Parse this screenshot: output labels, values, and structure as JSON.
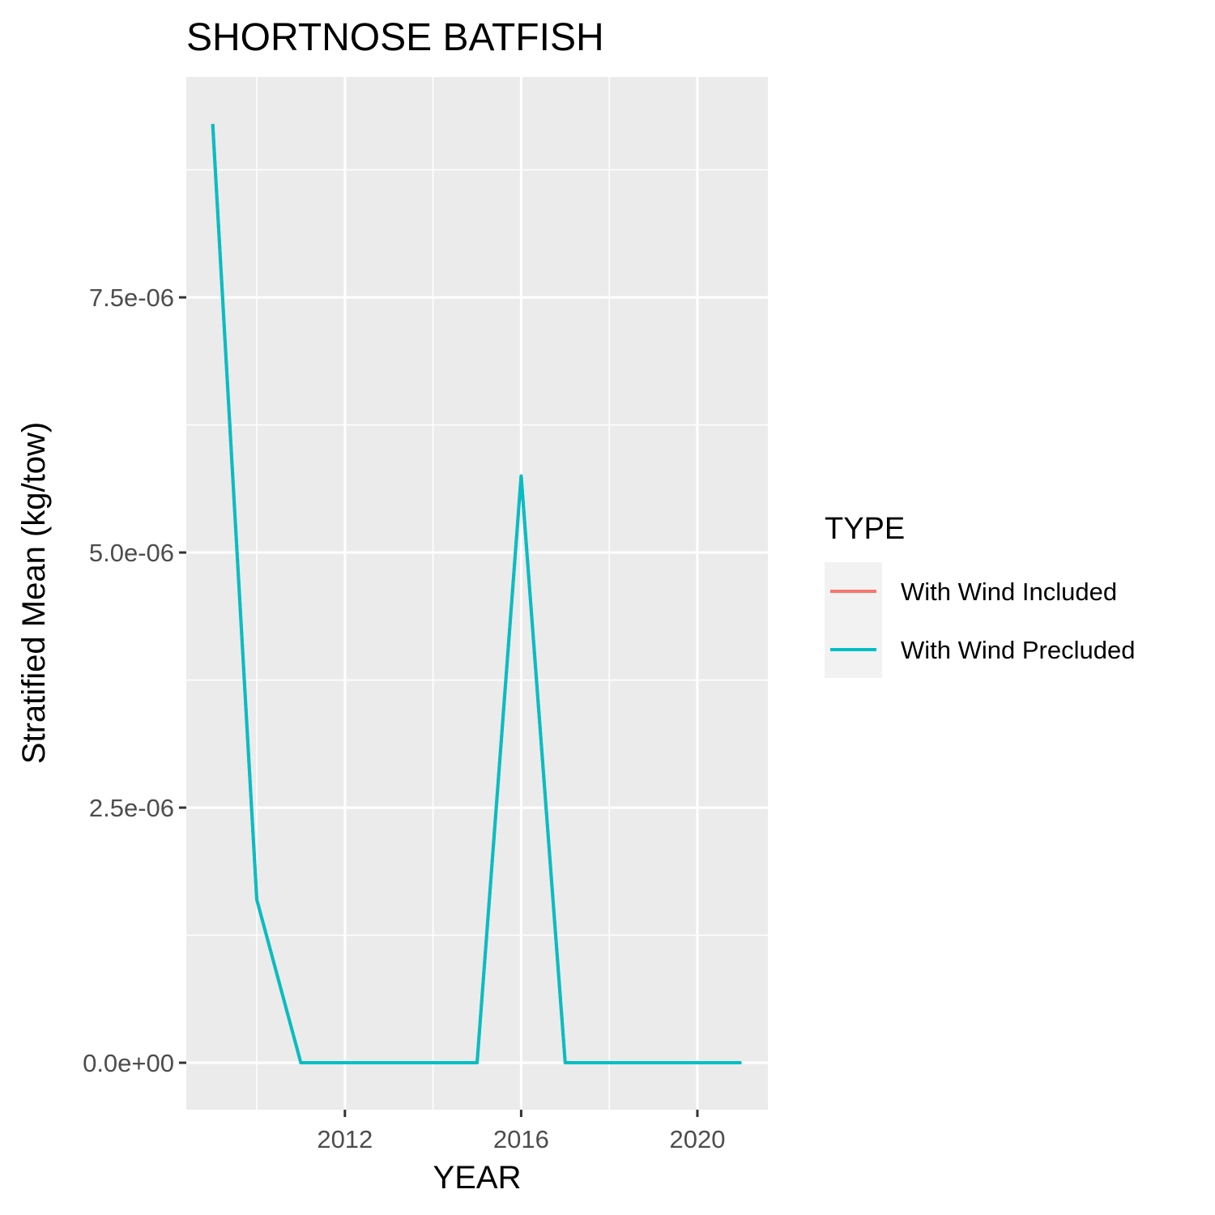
{
  "chart_data": {
    "type": "line",
    "title": "SHORTNOSE BATFISH",
    "xlabel": "YEAR",
    "ylabel": "Stratified Mean (kg/tow)",
    "x": [
      2009,
      2010,
      2011,
      2012,
      2013,
      2014,
      2015,
      2016,
      2017,
      2018,
      2019,
      2020,
      2021
    ],
    "series": [
      {
        "name": "With Wind Included",
        "color": "#F8766D",
        "values": [
          9.2e-06,
          1.6e-06,
          0,
          0,
          0,
          0,
          0,
          5.75e-06,
          0,
          0,
          0,
          0,
          0
        ]
      },
      {
        "name": "With Wind Precluded",
        "color": "#00BFC4",
        "values": [
          9.2e-06,
          1.6e-06,
          0,
          0,
          0,
          0,
          0,
          5.75e-06,
          0,
          0,
          0,
          0,
          0
        ]
      }
    ],
    "xlim": [
      2008.4,
      2021.6
    ],
    "ylim": [
      -4.6e-07,
      9.66e-06
    ],
    "x_ticks": [
      2012,
      2016,
      2020
    ],
    "x_tick_labels": [
      "2012",
      "2016",
      "2020"
    ],
    "y_ticks": [
      0,
      2.5e-06,
      5e-06,
      7.5e-06
    ],
    "y_tick_labels": [
      "0.0e+00",
      "2.5e-06",
      "5.0e-06",
      "7.5e-06"
    ],
    "legend": {
      "title": "TYPE",
      "position": "right"
    },
    "grid": true,
    "panel_background": "#EBEBEB"
  }
}
